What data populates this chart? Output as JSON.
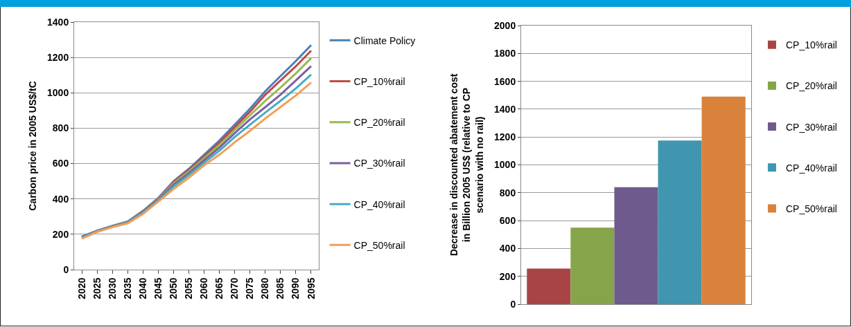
{
  "chart_data": [
    {
      "type": "line",
      "ylabel": "Carbon price in 2005 US$/tC",
      "categories": [
        "2020",
        "2025",
        "2030",
        "2035",
        "2040",
        "2045",
        "2050",
        "2055",
        "2060",
        "2065",
        "2070",
        "2075",
        "2080",
        "2085",
        "2090",
        "2095"
      ],
      "series": [
        {
          "name": "Climate Policy",
          "color": "#4a7ebb",
          "values": [
            187,
            220,
            248,
            272,
            332,
            405,
            500,
            570,
            650,
            730,
            820,
            910,
            1009,
            1095,
            1180,
            1270
          ]
        },
        {
          "name": "CP_10%rail",
          "color": "#be4b48",
          "values": [
            185,
            219,
            247,
            271,
            330,
            402,
            495,
            563,
            640,
            718,
            805,
            893,
            989,
            1070,
            1150,
            1239
          ]
        },
        {
          "name": "CP_20%rail",
          "color": "#98b954",
          "values": [
            184,
            218,
            246,
            270,
            328,
            398,
            488,
            555,
            630,
            705,
            790,
            873,
            955,
            1030,
            1110,
            1196
          ]
        },
        {
          "name": "CP_30%rail",
          "color": "#7d5fa0",
          "values": [
            183,
            217,
            245,
            269,
            326,
            394,
            480,
            545,
            618,
            690,
            772,
            850,
            919,
            990,
            1070,
            1151
          ]
        },
        {
          "name": "CP_40%rail",
          "color": "#46aac5",
          "values": [
            180,
            216,
            243,
            267,
            322,
            390,
            470,
            535,
            605,
            672,
            750,
            820,
            888,
            955,
            1025,
            1103
          ]
        },
        {
          "name": "CP_50%rail",
          "color": "#f59d56",
          "values": [
            175,
            213,
            240,
            262,
            315,
            385,
            455,
            520,
            590,
            650,
            720,
            785,
            855,
            920,
            985,
            1058
          ]
        }
      ],
      "ylim": [
        0,
        1400
      ],
      "yticks": [
        0,
        200,
        400,
        600,
        800,
        1000,
        1200,
        1400
      ],
      "grid": "y",
      "legend": "right",
      "marker": "none",
      "line_style": "solid"
    },
    {
      "type": "bar",
      "ylabel": "Decrease in discounted abatement cost\nin Billion 2005 US$ (relative to CP\nscenario with no rail)",
      "categories": [
        null
      ],
      "series": [
        {
          "name": "CP_10%rail",
          "color": "#a84443",
          "values": [
            255
          ]
        },
        {
          "name": "CP_20%rail",
          "color": "#86a44a",
          "values": [
            550
          ]
        },
        {
          "name": "CP_30%rail",
          "color": "#6e5a8d",
          "values": [
            840
          ]
        },
        {
          "name": "CP_40%rail",
          "color": "#3f96ae",
          "values": [
            1175
          ]
        },
        {
          "name": "CP_50%rail",
          "color": "#d8823b",
          "values": [
            1490
          ]
        }
      ],
      "ylim": [
        0,
        2000
      ],
      "yticks": [
        0,
        200,
        400,
        600,
        800,
        1000,
        1200,
        1400,
        1600,
        1800,
        2000
      ],
      "grid": "y",
      "legend": "right",
      "tick_labels": "y"
    }
  ]
}
